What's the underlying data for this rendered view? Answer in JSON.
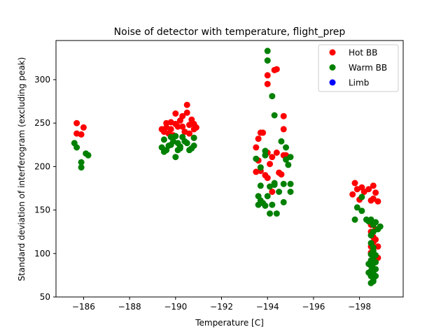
{
  "chart_data": {
    "type": "scatter",
    "title": "Noise of detector with temperature, flight_prep",
    "xlabel": "Temperature [C]",
    "ylabel": "Standard deviation of interferogram (excluding peak)",
    "xlim": [
      -184.8,
      -199.9
    ],
    "ylim": [
      50,
      345
    ],
    "x_ticks": [
      -186,
      -188,
      -190,
      -192,
      -194,
      -196,
      -198
    ],
    "x_tick_labels": [
      "−186",
      "−188",
      "−190",
      "−192",
      "−194",
      "−196",
      "−198"
    ],
    "y_ticks": [
      50,
      100,
      150,
      200,
      250,
      300
    ],
    "y_tick_labels": [
      "50",
      "100",
      "150",
      "200",
      "250",
      "300"
    ],
    "grid": false,
    "legend_position": "top-right",
    "series": [
      {
        "name": "Hot BB",
        "color": "#ff0000",
        "points": [
          [
            -185.7,
            250
          ],
          [
            -185.7,
            238
          ],
          [
            -185.9,
            237
          ],
          [
            -186.0,
            245
          ],
          [
            -189.4,
            243
          ],
          [
            -189.5,
            240
          ],
          [
            -189.6,
            245
          ],
          [
            -189.6,
            250
          ],
          [
            -189.7,
            238
          ],
          [
            -189.8,
            243
          ],
          [
            -189.8,
            251
          ],
          [
            -189.9,
            236
          ],
          [
            -190.0,
            249
          ],
          [
            -190.0,
            261
          ],
          [
            -190.1,
            246
          ],
          [
            -190.2,
            253
          ],
          [
            -190.3,
            246
          ],
          [
            -190.3,
            258
          ],
          [
            -190.4,
            240
          ],
          [
            -190.5,
            262
          ],
          [
            -190.5,
            271
          ],
          [
            -190.6,
            248
          ],
          [
            -190.6,
            238
          ],
          [
            -190.7,
            254
          ],
          [
            -190.8,
            243
          ],
          [
            -190.8,
            249
          ],
          [
            -190.9,
            245
          ],
          [
            -190.8,
            233
          ],
          [
            -193.5,
            222
          ],
          [
            -193.6,
            232
          ],
          [
            -193.6,
            207
          ],
          [
            -193.7,
            239
          ],
          [
            -193.8,
            239
          ],
          [
            -193.5,
            194
          ],
          [
            -193.7,
            195
          ],
          [
            -193.9,
            190
          ],
          [
            -194.0,
            187
          ],
          [
            -194.0,
            305
          ],
          [
            -194.0,
            295
          ],
          [
            -194.3,
            311
          ],
          [
            -194.4,
            312
          ],
          [
            -194.0,
            216
          ],
          [
            -194.1,
            203
          ],
          [
            -194.2,
            171
          ],
          [
            -194.2,
            211
          ],
          [
            -194.4,
            216
          ],
          [
            -194.5,
            193
          ],
          [
            -194.6,
            191
          ],
          [
            -194.7,
            258
          ],
          [
            -194.7,
            243
          ],
          [
            -194.7,
            213
          ],
          [
            -194.8,
            213
          ],
          [
            -197.8,
            181
          ],
          [
            -197.7,
            168
          ],
          [
            -197.9,
            174
          ],
          [
            -198.0,
            162
          ],
          [
            -198.1,
            176
          ],
          [
            -198.2,
            171
          ],
          [
            -198.4,
            174
          ],
          [
            -198.5,
            161
          ],
          [
            -198.6,
            178
          ],
          [
            -198.6,
            163
          ],
          [
            -198.7,
            170
          ],
          [
            -198.8,
            160
          ],
          [
            -198.5,
            133
          ],
          [
            -198.5,
            125
          ],
          [
            -198.6,
            119
          ],
          [
            -198.7,
            116
          ],
          [
            -198.8,
            108
          ],
          [
            -198.6,
            113
          ],
          [
            -198.5,
            108
          ],
          [
            -198.7,
            128
          ],
          [
            -198.8,
            95
          ],
          [
            -198.6,
            98
          ],
          [
            -198.5,
            101
          ]
        ]
      },
      {
        "name": "Warm BB",
        "color": "#008000",
        "points": [
          [
            -185.6,
            227
          ],
          [
            -185.7,
            222
          ],
          [
            -185.9,
            205
          ],
          [
            -185.9,
            199
          ],
          [
            -186.1,
            215
          ],
          [
            -186.2,
            213
          ],
          [
            -189.4,
            222
          ],
          [
            -189.5,
            217
          ],
          [
            -189.5,
            231
          ],
          [
            -189.6,
            219
          ],
          [
            -189.7,
            224
          ],
          [
            -189.8,
            225
          ],
          [
            -189.8,
            234
          ],
          [
            -189.9,
            229
          ],
          [
            -190.0,
            211
          ],
          [
            -190.1,
            219
          ],
          [
            -190.1,
            227
          ],
          [
            -190.2,
            223
          ],
          [
            -190.3,
            234
          ],
          [
            -190.4,
            229
          ],
          [
            -190.5,
            227
          ],
          [
            -190.6,
            219
          ],
          [
            -190.7,
            221
          ],
          [
            -190.8,
            224
          ],
          [
            -190.8,
            233
          ],
          [
            -190.2,
            221
          ],
          [
            -190.0,
            235
          ],
          [
            -193.5,
            209
          ],
          [
            -193.6,
            156
          ],
          [
            -193.6,
            166
          ],
          [
            -193.7,
            161
          ],
          [
            -193.7,
            178
          ],
          [
            -193.7,
            199
          ],
          [
            -193.8,
            158
          ],
          [
            -193.9,
            155
          ],
          [
            -193.9,
            218
          ],
          [
            -193.9,
            213
          ],
          [
            -194.0,
            333
          ],
          [
            -194.0,
            322
          ],
          [
            -194.0,
            166
          ],
          [
            -194.1,
            177
          ],
          [
            -194.1,
            146
          ],
          [
            -194.2,
            156
          ],
          [
            -194.3,
            179
          ],
          [
            -194.3,
            181
          ],
          [
            -194.4,
            146
          ],
          [
            -194.3,
            259
          ],
          [
            -194.2,
            281
          ],
          [
            -194.5,
            171
          ],
          [
            -194.6,
            229
          ],
          [
            -194.7,
            159
          ],
          [
            -194.8,
            222
          ],
          [
            -194.7,
            180
          ],
          [
            -194.9,
            202
          ],
          [
            -195.0,
            211
          ],
          [
            -195.0,
            180
          ],
          [
            -195.0,
            171
          ],
          [
            -194.8,
            208
          ],
          [
            -197.8,
            139
          ],
          [
            -197.9,
            153
          ],
          [
            -198.1,
            149
          ],
          [
            -198.1,
            165
          ],
          [
            -198.3,
            139
          ],
          [
            -198.4,
            137
          ],
          [
            -198.5,
            139
          ],
          [
            -198.6,
            125
          ],
          [
            -198.6,
            133
          ],
          [
            -198.7,
            136
          ],
          [
            -198.8,
            128
          ],
          [
            -198.9,
            131
          ],
          [
            -198.5,
            121
          ],
          [
            -198.5,
            112
          ],
          [
            -198.6,
            107
          ],
          [
            -198.6,
            103
          ],
          [
            -198.5,
            99
          ],
          [
            -198.6,
            96
          ],
          [
            -198.5,
            92
          ],
          [
            -198.6,
            89
          ],
          [
            -198.5,
            86
          ],
          [
            -198.6,
            83
          ],
          [
            -198.5,
            80
          ],
          [
            -198.6,
            77
          ],
          [
            -198.5,
            74
          ],
          [
            -198.6,
            71
          ],
          [
            -198.6,
            68
          ],
          [
            -198.5,
            66
          ],
          [
            -198.7,
            74
          ],
          [
            -198.7,
            82
          ],
          [
            -198.7,
            90
          ],
          [
            -198.7,
            98
          ],
          [
            -198.4,
            78
          ],
          [
            -198.4,
            88
          ]
        ]
      },
      {
        "name": "Limb",
        "color": "#0000ff",
        "points": []
      }
    ]
  }
}
